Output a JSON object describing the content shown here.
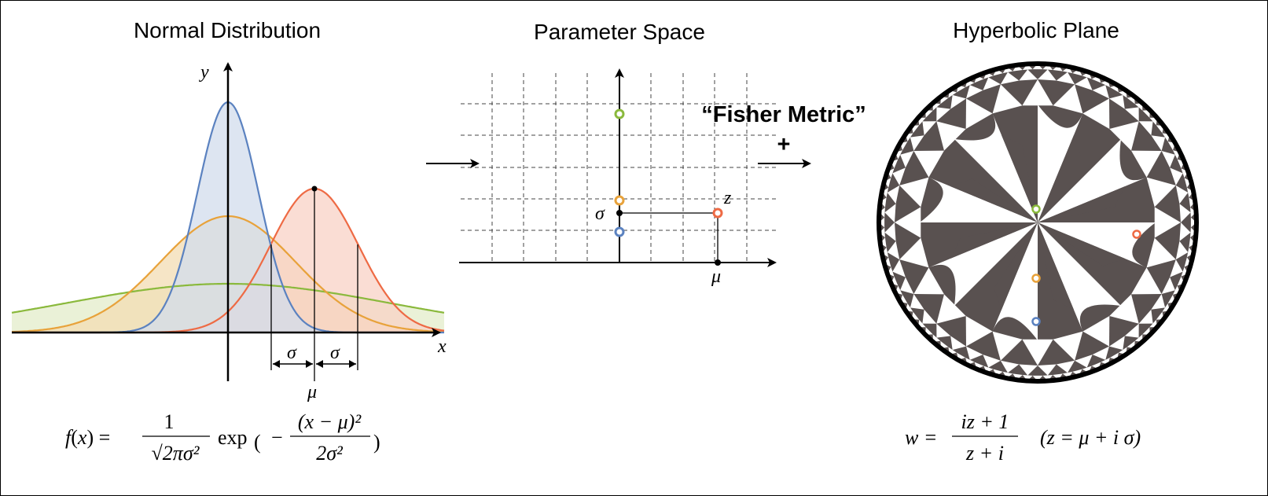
{
  "titles": {
    "left": "Normal Distribution",
    "middle": "Parameter Space",
    "right": "Hyperbolic Plane"
  },
  "left_panel": {
    "axis_x_label": "x",
    "axis_y_label": "y",
    "sigma_label": "σ",
    "mu_label": "μ",
    "formula": {
      "lhs": "f(x) =",
      "num": "1",
      "den": "√2πσ²",
      "rest": "exp",
      "inner_num": "(x − μ)²",
      "inner_den": "2σ²"
    }
  },
  "middle_panel": {
    "sigma_label": "σ",
    "mu_label": "μ",
    "z_label": "z",
    "fisher_label": "“Fisher Metric”",
    "plus_label": "+"
  },
  "right_panel": {
    "formula": {
      "lhs": "w =",
      "num": "iz + 1",
      "den": "z + i",
      "paren": "(z = μ + i σ)"
    }
  },
  "colors": {
    "blue": "#5b82c0",
    "orange": "#e8a23a",
    "green": "#8ab93c",
    "red": "#ee6a44",
    "tile_dark": "#595150",
    "fill_blue": "#d2dcec",
    "fill_orange": "#f3dcb3",
    "fill_green": "#e3ecc9",
    "fill_red": "#f8d2c6"
  }
}
